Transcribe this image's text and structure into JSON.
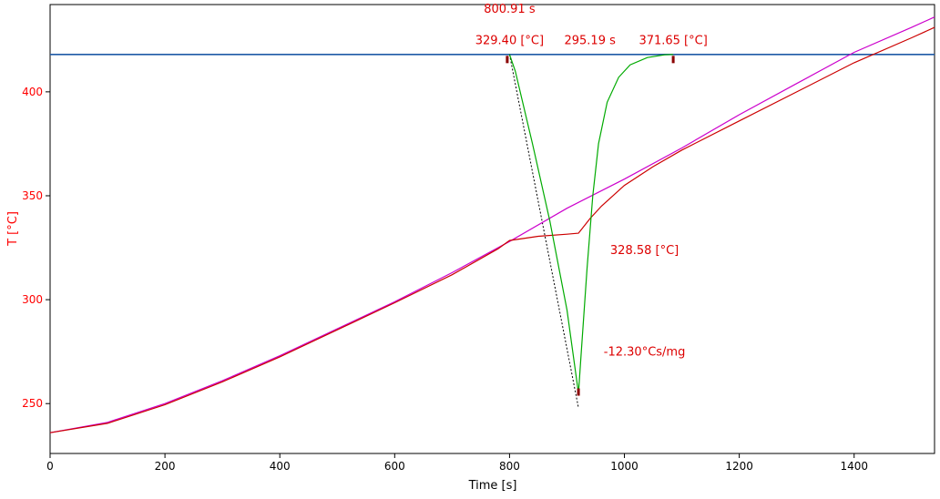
{
  "chart_data": {
    "type": "line",
    "title": "",
    "xlabel": "Time [s]",
    "ylabel": "T  [°C]",
    "xlim": [
      0,
      1540
    ],
    "ylim": [
      226,
      442
    ],
    "x_ticks": [
      0,
      200,
      400,
      600,
      800,
      1000,
      1200,
      1400
    ],
    "y_ticks": [
      250,
      300,
      350,
      400
    ],
    "grid": false,
    "legend": "none",
    "colors": {
      "axis_text": "#ff0000",
      "baseline": "#1f5aa6",
      "measured": "#cc0000",
      "reference": "#cc00cc",
      "derivative": "#00aa00",
      "annotation": "#dd0000",
      "marker": "#8b0000"
    },
    "series": [
      {
        "color_key": "reference",
        "x": [
          0,
          100,
          200,
          300,
          400,
          500,
          600,
          700,
          800,
          900,
          1000,
          1100,
          1200,
          1300,
          1400,
          1500,
          1540
        ],
        "y": [
          236,
          241,
          250,
          261,
          273,
          286,
          299,
          313,
          328,
          344,
          358,
          373,
          389,
          404,
          419,
          431,
          436
        ]
      },
      {
        "color_key": "measured",
        "x": [
          0,
          100,
          200,
          300,
          400,
          500,
          600,
          700,
          780,
          800,
          850,
          900,
          920,
          940,
          960,
          1000,
          1050,
          1100,
          1200,
          1300,
          1400,
          1500,
          1540
        ],
        "y": [
          236,
          240.5,
          249.5,
          260.5,
          272.5,
          285.5,
          298.5,
          312,
          324.5,
          328.5,
          330.5,
          331.5,
          332,
          339,
          345,
          355,
          364,
          372,
          386,
          400,
          414,
          426,
          431
        ]
      },
      {
        "color_key": "derivative",
        "x": [
          800,
          810,
          840,
          870,
          900,
          920,
          925,
          935,
          945,
          955,
          970,
          990,
          1010,
          1040,
          1070,
          1085
        ],
        "y": [
          418,
          410,
          375,
          338,
          295,
          255,
          275,
          315,
          350,
          375,
          395,
          407,
          413,
          416.5,
          417.8,
          418
        ]
      }
    ],
    "baseline_y": 418,
    "tangent": {
      "x": [
        800,
        920
      ],
      "y": [
        418,
        248
      ]
    },
    "markers": [
      {
        "x": 796,
        "y": 416
      },
      {
        "x": 1085,
        "y": 416
      },
      {
        "x": 920,
        "y": 256
      }
    ],
    "annotations": [
      {
        "text": "800.91 s",
        "x": 800,
        "y": 438
      },
      {
        "text": "329.40 [°C]",
        "x": 800,
        "y": 423
      },
      {
        "text": "295.19 s",
        "x": 940,
        "y": 423
      },
      {
        "text": "371.65 [°C]",
        "x": 1085,
        "y": 423
      },
      {
        "text": "328.58 [°C]",
        "x": 1035,
        "y": 322
      },
      {
        "text": "-12.30°Cs/mg",
        "x": 1035,
        "y": 273
      }
    ]
  }
}
